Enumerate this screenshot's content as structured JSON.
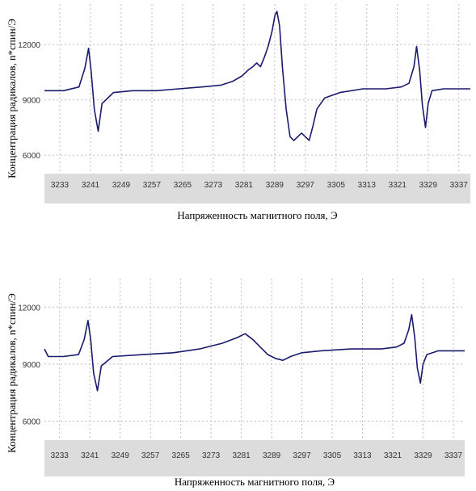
{
  "chart_data": [
    {
      "type": "line",
      "xlabel": "Напряженность магнитного поля, Э",
      "ylabel": "Концентрация радикалов, n*спин/Э",
      "x_ticks": [
        "3233",
        "3241",
        "3249",
        "3257",
        "3265",
        "3273",
        "3281",
        "3289",
        "3297",
        "3305",
        "3313",
        "3321",
        "3329",
        "3337"
      ],
      "y_ticks": [
        "12000",
        "9000",
        "6000"
      ],
      "xlim": [
        3229,
        3340
      ],
      "ylim": [
        5000,
        14200
      ],
      "grid": true,
      "color": "#1a1a6e",
      "series": [
        {
          "x": [
            3229,
            3234,
            3238,
            3239.5,
            3240.5,
            3241.2,
            3242,
            3243,
            3244,
            3247,
            3252,
            3258,
            3264,
            3270,
            3275,
            3278,
            3280.5,
            3282,
            3283.3,
            3284.3,
            3285.3,
            3286.3,
            3287.3,
            3288.3,
            3289.1,
            3289.6,
            3290.3,
            3291,
            3292,
            3293,
            3294,
            3295,
            3296,
            3297,
            3298,
            3299,
            3300,
            3302,
            3306,
            3312,
            3318,
            3322,
            3324,
            3325.3,
            3326,
            3326.8,
            3327.5,
            3328.3,
            3329,
            3330,
            3333,
            3337,
            3340
          ],
          "y": [
            9500,
            9500,
            9700,
            10700,
            11800,
            10500,
            8500,
            7300,
            8800,
            9400,
            9500,
            9500,
            9600,
            9700,
            9800,
            10000,
            10300,
            10600,
            10800,
            11000,
            10800,
            11300,
            11900,
            12700,
            13600,
            13800,
            13000,
            10800,
            8500,
            7000,
            6800,
            7000,
            7200,
            7000,
            6800,
            7600,
            8500,
            9100,
            9400,
            9600,
            9600,
            9700,
            9900,
            10800,
            11900,
            10600,
            8700,
            7500,
            8800,
            9500,
            9600,
            9600,
            9600
          ]
        }
      ]
    },
    {
      "type": "line",
      "xlabel": "Напряженность магнитного поля, Э",
      "ylabel": "Концентрация радикалов, n*спин/Э",
      "x_ticks": [
        "3233",
        "3241",
        "3249",
        "3257",
        "3265",
        "3273",
        "3281",
        "3289",
        "3297",
        "3305",
        "3313",
        "3321",
        "3329",
        "3337"
      ],
      "y_ticks": [
        "12000",
        "9000",
        "6000"
      ],
      "xlim": [
        3229,
        3340
      ],
      "ylim": [
        5000,
        13500
      ],
      "grid": true,
      "color": "#1a1a6e",
      "series": [
        {
          "x": [
            3229,
            3230,
            3234,
            3238,
            3239.5,
            3240.5,
            3241.2,
            3242,
            3243,
            3244,
            3247,
            3255,
            3263,
            3270,
            3276,
            3280,
            3282,
            3284,
            3286,
            3288,
            3290,
            3292,
            3294,
            3297,
            3302,
            3310,
            3318,
            3322,
            3324,
            3325.2,
            3326,
            3326.8,
            3327.5,
            3328.3,
            3329,
            3330,
            3333,
            3337,
            3340
          ],
          "y": [
            9800,
            9400,
            9400,
            9500,
            10300,
            11300,
            10300,
            8500,
            7600,
            8900,
            9400,
            9500,
            9600,
            9800,
            10100,
            10400,
            10600,
            10300,
            9900,
            9500,
            9300,
            9200,
            9400,
            9600,
            9700,
            9800,
            9800,
            9900,
            10100,
            10800,
            11600,
            10400,
            8800,
            8000,
            9000,
            9500,
            9700,
            9700,
            9700
          ]
        }
      ]
    }
  ]
}
